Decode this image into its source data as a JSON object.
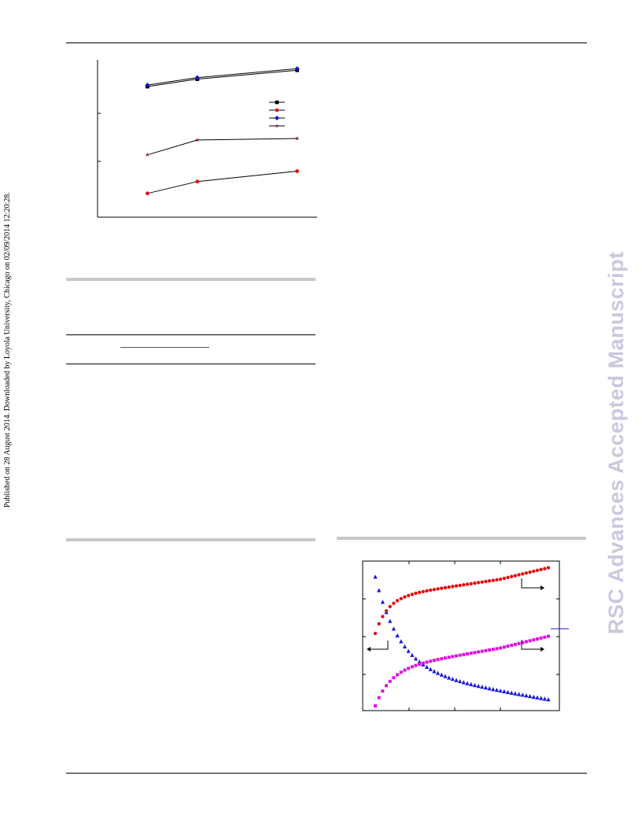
{
  "side_note": "Published on 28 August 2014. Downloaded by Loyola University, Chicago on 02/09/2014 12:20:28.",
  "watermark": "RSC Advances Accepted Manuscript",
  "chart_data": [
    {
      "type": "line",
      "x": [
        1,
        2,
        4
      ],
      "series": [
        {
          "marker": "square",
          "color": "#000000",
          "values": [
            0.82,
            0.87,
            0.93
          ]
        },
        {
          "marker": "circle",
          "color": "#e01010",
          "values": [
            0.1,
            0.18,
            0.25
          ]
        },
        {
          "marker": "diamond",
          "color": "#1010d0",
          "values": [
            0.83,
            0.88,
            0.94
          ]
        },
        {
          "marker": "star",
          "color": "#8b1a1a",
          "values": [
            0.36,
            0.46,
            0.47
          ]
        }
      ],
      "legend": "right",
      "xlim": [
        0,
        4.4
      ],
      "ylim": [
        -0.06,
        1.0
      ]
    },
    {
      "type": "scatter",
      "series": [
        {
          "marker": "triangle",
          "color": "#1a1adc",
          "axis": "left"
        },
        {
          "marker": "circle",
          "color": "#e01010",
          "axis": "right"
        },
        {
          "marker": "square",
          "color": "#e010e0",
          "axis": "right"
        }
      ],
      "points": 48,
      "grid": false
    }
  ]
}
